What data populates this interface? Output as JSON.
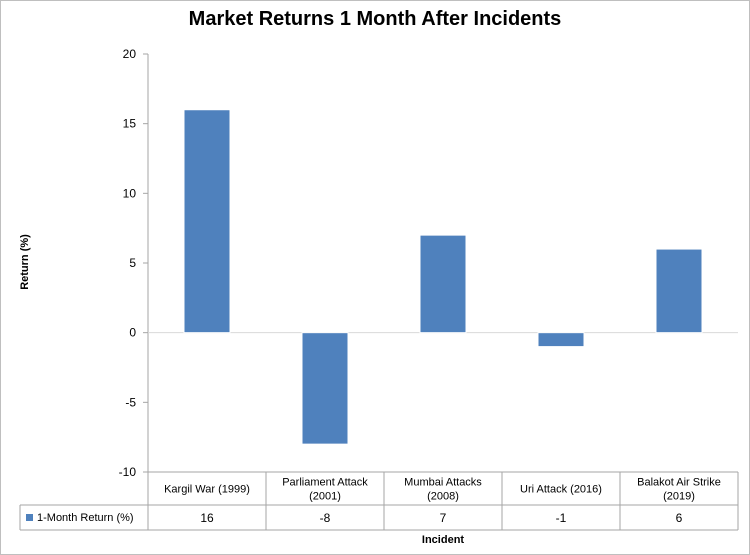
{
  "chart_data": {
    "type": "bar",
    "title": "Market Returns 1 Month After Incidents",
    "xlabel": "Incident",
    "ylabel": "Return (%)",
    "ylim": [
      -10,
      20
    ],
    "yticks": [
      -10,
      -5,
      0,
      5,
      10,
      15,
      20
    ],
    "grid": false,
    "categories": [
      [
        "Kargil War (1999)"
      ],
      [
        "Parliament Attack",
        "(2001)"
      ],
      [
        "Mumbai Attacks",
        "(2008)"
      ],
      [
        "Uri Attack (2016)"
      ],
      [
        "Balakot Air Strike",
        "(2019)"
      ]
    ],
    "series": [
      {
        "name": "1-Month Return (%)",
        "values": [
          16,
          -8,
          7,
          -1,
          6
        ],
        "color": "#4f81bd"
      }
    ],
    "value_labels": [
      "16",
      "-8",
      "7",
      "-1",
      "6"
    ],
    "data_table": true
  }
}
